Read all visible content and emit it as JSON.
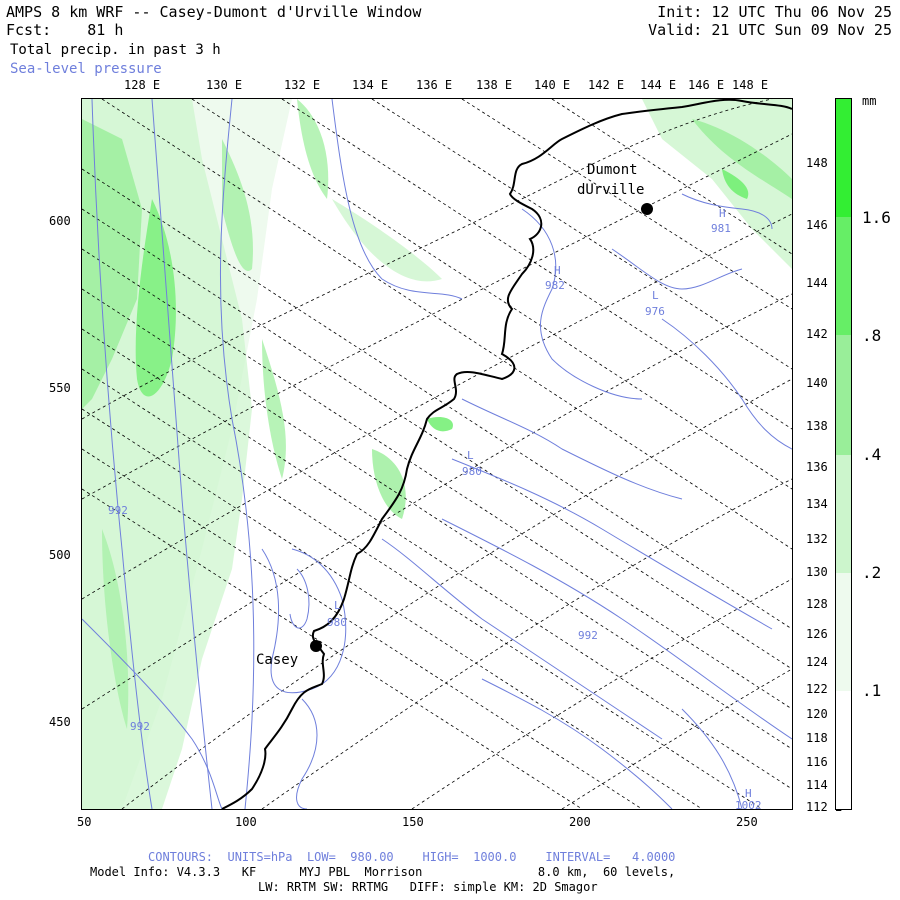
{
  "header": {
    "title": "AMPS 8 km WRF -- Casey-Dumont d'Urville Window",
    "fcst_label": "Fcst:",
    "fcst_value": "81 h",
    "field": "Total precip. in past 3 h",
    "overlay": "Sea-level pressure",
    "init": "Init: 12 UTC Thu 06 Nov 25",
    "valid": "Valid: 21 UTC Sun 09 Nov 25"
  },
  "map": {
    "top_lon_labels": [
      "128 E",
      "130 E",
      "132 E",
      "134 E",
      "136 E",
      "138 E",
      "140 E",
      "142 E",
      "144 E",
      "146 E",
      "148 E"
    ],
    "right_lon_labels": [
      "148 E",
      "146 E",
      "144 E",
      "142 E",
      "140 E",
      "138 E",
      "136 E",
      "134 E",
      "132 E",
      "130 E",
      "128 E",
      "126 E",
      "124 E",
      "122 E",
      "120 E",
      "118 E",
      "116 E",
      "114 E",
      "112 E"
    ],
    "y_axis_labels": [
      "600",
      "550",
      "500",
      "450"
    ],
    "x_axis_labels": [
      "50",
      "100",
      "150",
      "200",
      "250"
    ],
    "stations": [
      {
        "name_line1": "Dumont",
        "name_line2": "dUrville"
      },
      {
        "name_line1": "Casey",
        "name_line2": ""
      }
    ],
    "pressure_labels": {
      "h_dumont": "H",
      "v_981": "981",
      "h_coast": "H",
      "v_982": "982",
      "l_976": "L",
      "v_976": "976",
      "l_980a": "L",
      "v_980a": "980",
      "v_992a": "992",
      "l_980b": "L",
      "v_980b": "980",
      "v_992b": "992",
      "v_992c": "992",
      "h_sw": "H",
      "v_1002": "1002"
    }
  },
  "legend": {
    "unit": "mm",
    "labels": [
      "1.6",
      ".8",
      ".4",
      ".2",
      ".1"
    ],
    "colors": [
      "#33ee33",
      "#66ee66",
      "#99ee99",
      "#ccf5cc",
      "#eefaee"
    ]
  },
  "footer": {
    "contours": "CONTOURS:  UNITS=hPa  LOW=  980.00    HIGH=  1000.0    INTERVAL=   4.0000",
    "model_info": "Model Info: V4.3.3   KF      MYJ PBL  Morrison                8.0 km,  60 levels,",
    "physics": "LW: RRTM SW: RRTMG   DIFF: simple KM: 2D Smagor"
  }
}
